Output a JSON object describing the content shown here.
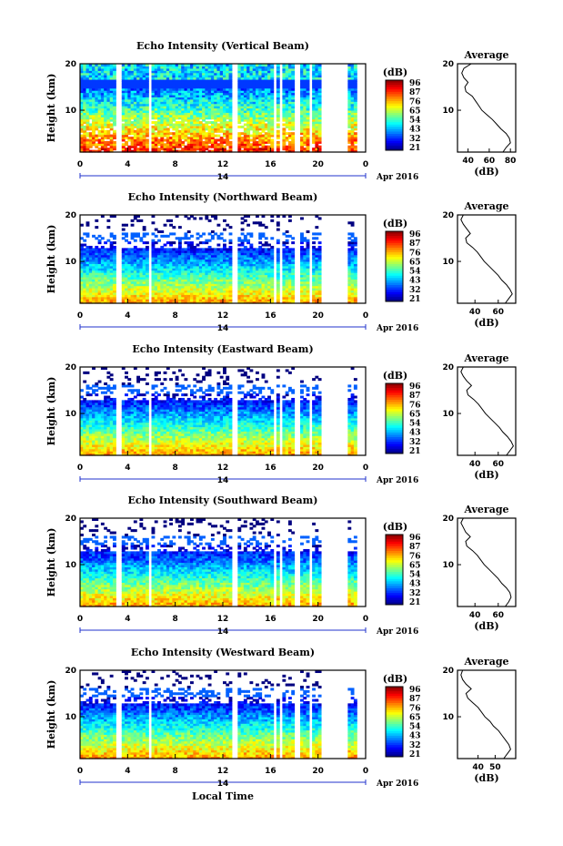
{
  "figure": {
    "x_label": "Local Time",
    "date_label": "Apr 2016",
    "day_label": "14"
  },
  "chart_data": [
    {
      "type": "heatmap",
      "title": "Echo Intensity (Vertical Beam)",
      "ylabel": "Height (km)",
      "x_ticks": [
        "0",
        "4",
        "8",
        "12",
        "16",
        "20",
        "0"
      ],
      "y_ticks": [
        "10",
        "20"
      ],
      "xlim": [
        0,
        24
      ],
      "ylim": [
        1,
        20
      ],
      "colorbar": {
        "unit": "(dB)",
        "ticks": [
          "96",
          "87",
          "76",
          "65",
          "54",
          "43",
          "32",
          "21"
        ]
      },
      "profile": {
        "title": "Average",
        "xlabel": "(dB)",
        "x_ticks": [
          "40",
          "60",
          "80"
        ],
        "xlim": [
          30,
          85
        ],
        "y_ticks": [
          "10",
          "20"
        ],
        "points": [
          [
            43,
            20
          ],
          [
            36,
            19
          ],
          [
            34,
            18
          ],
          [
            36,
            17
          ],
          [
            40,
            16
          ],
          [
            37,
            15
          ],
          [
            38,
            14
          ],
          [
            44,
            13
          ],
          [
            47,
            12
          ],
          [
            50,
            11
          ],
          [
            53,
            10
          ],
          [
            58,
            9
          ],
          [
            63,
            8
          ],
          [
            67,
            7
          ],
          [
            71,
            6
          ],
          [
            76,
            5
          ],
          [
            79,
            4
          ],
          [
            80,
            3
          ],
          [
            76,
            2
          ],
          [
            73,
            1
          ]
        ]
      }
    },
    {
      "type": "heatmap",
      "title": "Echo Intensity (Northward Beam)",
      "ylabel": "Height (km)",
      "x_ticks": [
        "0",
        "4",
        "8",
        "12",
        "16",
        "20",
        "0"
      ],
      "y_ticks": [
        "10",
        "20"
      ],
      "xlim": [
        0,
        24
      ],
      "ylim": [
        1,
        20
      ],
      "colorbar": {
        "unit": "(dB)",
        "ticks": [
          "96",
          "87",
          "76",
          "65",
          "54",
          "43",
          "32",
          "21"
        ]
      },
      "profile": {
        "title": "Average",
        "xlabel": "(dB)",
        "x_ticks": [
          "40",
          "60"
        ],
        "xlim": [
          25,
          75
        ],
        "y_ticks": [
          "10",
          "20"
        ],
        "points": [
          [
            30,
            20
          ],
          [
            28,
            19
          ],
          [
            30,
            18
          ],
          [
            33,
            17
          ],
          [
            36,
            16
          ],
          [
            32,
            15
          ],
          [
            33,
            14
          ],
          [
            38,
            13
          ],
          [
            42,
            12
          ],
          [
            45,
            11
          ],
          [
            48,
            10
          ],
          [
            52,
            9
          ],
          [
            56,
            8
          ],
          [
            60,
            7
          ],
          [
            63,
            6
          ],
          [
            67,
            5
          ],
          [
            70,
            4
          ],
          [
            72,
            3
          ],
          [
            69,
            2
          ],
          [
            66,
            1
          ]
        ]
      }
    },
    {
      "type": "heatmap",
      "title": "Echo Intensity (Eastward Beam)",
      "ylabel": "Height (km)",
      "x_ticks": [
        "0",
        "4",
        "8",
        "12",
        "16",
        "20",
        "0"
      ],
      "y_ticks": [
        "10",
        "20"
      ],
      "xlim": [
        0,
        24
      ],
      "ylim": [
        1,
        20
      ],
      "colorbar": {
        "unit": "(dB)",
        "ticks": [
          "96",
          "87",
          "76",
          "65",
          "54",
          "43",
          "32",
          "21"
        ]
      },
      "profile": {
        "title": "Average",
        "xlabel": "(dB)",
        "x_ticks": [
          "40",
          "60"
        ],
        "xlim": [
          25,
          75
        ],
        "y_ticks": [
          "10",
          "20"
        ],
        "points": [
          [
            30,
            20
          ],
          [
            28,
            19
          ],
          [
            30,
            18
          ],
          [
            33,
            17
          ],
          [
            37,
            16
          ],
          [
            33,
            15
          ],
          [
            34,
            14
          ],
          [
            39,
            13
          ],
          [
            43,
            12
          ],
          [
            46,
            11
          ],
          [
            49,
            10
          ],
          [
            53,
            9
          ],
          [
            57,
            8
          ],
          [
            61,
            7
          ],
          [
            64,
            6
          ],
          [
            68,
            5
          ],
          [
            71,
            4
          ],
          [
            73,
            3
          ],
          [
            70,
            2
          ],
          [
            67,
            1
          ]
        ]
      }
    },
    {
      "type": "heatmap",
      "title": "Echo Intensity (Southward Beam)",
      "ylabel": "Height (km)",
      "x_ticks": [
        "0",
        "4",
        "8",
        "12",
        "16",
        "20",
        "0"
      ],
      "y_ticks": [
        "10",
        "20"
      ],
      "xlim": [
        0,
        24
      ],
      "ylim": [
        1,
        20
      ],
      "colorbar": {
        "unit": "(dB)",
        "ticks": [
          "96",
          "87",
          "76",
          "65",
          "54",
          "43",
          "32",
          "21"
        ]
      },
      "profile": {
        "title": "Average",
        "xlabel": "(dB)",
        "x_ticks": [
          "40",
          "60"
        ],
        "xlim": [
          25,
          75
        ],
        "y_ticks": [
          "10",
          "20"
        ],
        "points": [
          [
            30,
            20
          ],
          [
            28,
            19
          ],
          [
            30,
            18
          ],
          [
            32,
            17
          ],
          [
            36,
            16
          ],
          [
            32,
            15
          ],
          [
            33,
            14
          ],
          [
            38,
            13
          ],
          [
            42,
            12
          ],
          [
            45,
            11
          ],
          [
            48,
            10
          ],
          [
            52,
            9
          ],
          [
            56,
            8
          ],
          [
            60,
            7
          ],
          [
            63,
            6
          ],
          [
            67,
            5
          ],
          [
            70,
            4
          ],
          [
            71,
            3
          ],
          [
            69,
            2
          ],
          [
            66,
            1
          ]
        ]
      }
    },
    {
      "type": "heatmap",
      "title": "Echo Intensity (Westward Beam)",
      "ylabel": "Height (km)",
      "x_ticks": [
        "0",
        "4",
        "8",
        "12",
        "16",
        "20",
        "0"
      ],
      "y_ticks": [
        "10",
        "20"
      ],
      "xlim": [
        0,
        24
      ],
      "ylim": [
        1,
        20
      ],
      "colorbar": {
        "unit": "(dB)",
        "ticks": [
          "96",
          "87",
          "76",
          "65",
          "54",
          "43",
          "32",
          "21"
        ]
      },
      "profile": {
        "title": "Average",
        "xlabel": "(dB)",
        "x_ticks": [
          "40",
          "50"
        ],
        "xlim": [
          28,
          62
        ],
        "y_ticks": [
          "10",
          "20"
        ],
        "points": [
          [
            31,
            20
          ],
          [
            30,
            19
          ],
          [
            31,
            18
          ],
          [
            33,
            17
          ],
          [
            36,
            16
          ],
          [
            33,
            15
          ],
          [
            34,
            14
          ],
          [
            37,
            13
          ],
          [
            40,
            12
          ],
          [
            42,
            11
          ],
          [
            44,
            10
          ],
          [
            47,
            9
          ],
          [
            49,
            8
          ],
          [
            52,
            7
          ],
          [
            54,
            6
          ],
          [
            56,
            5
          ],
          [
            58,
            4
          ],
          [
            59,
            3
          ],
          [
            57,
            2
          ],
          [
            55,
            1
          ]
        ]
      }
    }
  ]
}
